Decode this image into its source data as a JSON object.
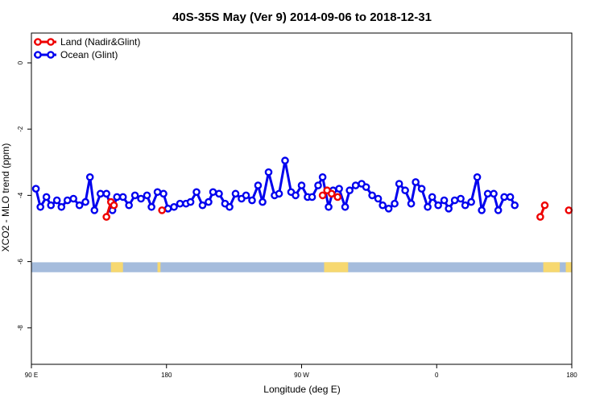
{
  "chart_data": {
    "type": "line",
    "title": "40S-35S May (Ver 9)   2014-09-06 to 2018-12-31",
    "xlabel": "Longitude (deg E)",
    "ylabel": "XCO2 - MLO trend (ppm)",
    "xlim": [
      90,
      450
    ],
    "ylim": [
      -9.1,
      0.9
    ],
    "x_ticks": [
      {
        "value": 90,
        "label": "90 E"
      },
      {
        "value": 180,
        "label": "180"
      },
      {
        "value": 270,
        "label": "90 W"
      },
      {
        "value": 360,
        "label": "0"
      },
      {
        "value": 450,
        "label": "180"
      }
    ],
    "y_ticks": [
      {
        "value": 0,
        "label": "0"
      },
      {
        "value": -2,
        "label": "-2"
      },
      {
        "value": -4,
        "label": "-4"
      },
      {
        "value": -6,
        "label": "-6"
      },
      {
        "value": -8,
        "label": "-8"
      }
    ],
    "grid": false,
    "legend": "top-left",
    "land_band": {
      "y_range": [
        -6.32,
        -6.02
      ],
      "ocean_color": "#a5bcdc",
      "land_color": "#f7d870",
      "land_spans": [
        [
          143,
          151
        ],
        [
          174,
          176
        ],
        [
          285,
          301
        ],
        [
          431,
          442
        ],
        [
          446,
          450
        ]
      ]
    },
    "series": [
      {
        "name": "Land (Nadir&Glint)",
        "color": "#ee0000",
        "segments": [
          [
            [
              140,
              -4.65
            ],
            [
              143,
              -4.2
            ],
            [
              145,
              -4.3
            ]
          ],
          [
            [
              177,
              -4.45
            ]
          ],
          [
            [
              284,
              -4.0
            ],
            [
              287,
              -3.85
            ],
            [
              290,
              -3.95
            ],
            [
              294,
              -4.05
            ]
          ],
          [
            [
              429,
              -4.65
            ],
            [
              432,
              -4.3
            ]
          ],
          [
            [
              448,
              -4.45
            ]
          ]
        ]
      },
      {
        "name": "Ocean (Glint)",
        "color": "#0000ee",
        "points": [
          [
            93,
            -3.8
          ],
          [
            96,
            -4.35
          ],
          [
            100,
            -4.05
          ],
          [
            103,
            -4.3
          ],
          [
            107,
            -4.15
          ],
          [
            110,
            -4.35
          ],
          [
            114,
            -4.15
          ],
          [
            118,
            -4.1
          ],
          [
            122,
            -4.3
          ],
          [
            126,
            -4.2
          ],
          [
            129,
            -3.45
          ],
          [
            132,
            -4.45
          ],
          [
            136,
            -3.95
          ],
          [
            140,
            -3.95
          ],
          [
            144,
            -4.45
          ],
          [
            147,
            -4.05
          ],
          [
            151,
            -4.05
          ],
          [
            155,
            -4.3
          ],
          [
            159,
            -4.0
          ],
          [
            163,
            -4.1
          ],
          [
            167,
            -4.0
          ],
          [
            170,
            -4.35
          ],
          [
            174,
            -3.9
          ],
          [
            178,
            -3.95
          ],
          [
            181,
            -4.4
          ],
          [
            185,
            -4.35
          ],
          [
            189,
            -4.25
          ],
          [
            193,
            -4.25
          ],
          [
            196,
            -4.2
          ],
          [
            200,
            -3.9
          ],
          [
            204,
            -4.3
          ],
          [
            208,
            -4.2
          ],
          [
            211,
            -3.9
          ],
          [
            215,
            -3.95
          ],
          [
            219,
            -4.25
          ],
          [
            222,
            -4.35
          ],
          [
            226,
            -3.95
          ],
          [
            230,
            -4.1
          ],
          [
            233,
            -4.0
          ],
          [
            237,
            -4.15
          ],
          [
            241,
            -3.7
          ],
          [
            244,
            -4.2
          ],
          [
            248,
            -3.3
          ],
          [
            252,
            -4.0
          ],
          [
            255,
            -3.95
          ],
          [
            259,
            -2.95
          ],
          [
            263,
            -3.9
          ],
          [
            266,
            -4.0
          ],
          [
            270,
            -3.7
          ],
          [
            274,
            -4.05
          ],
          [
            277,
            -4.05
          ],
          [
            281,
            -3.7
          ],
          [
            284,
            -3.45
          ],
          [
            288,
            -4.35
          ],
          [
            291,
            -3.85
          ],
          [
            295,
            -3.8
          ],
          [
            299,
            -4.35
          ],
          [
            302,
            -3.85
          ],
          [
            306,
            -3.7
          ],
          [
            310,
            -3.65
          ],
          [
            313,
            -3.75
          ],
          [
            317,
            -4.0
          ],
          [
            321,
            -4.1
          ],
          [
            324,
            -4.3
          ],
          [
            328,
            -4.4
          ],
          [
            332,
            -4.25
          ],
          [
            335,
            -3.65
          ],
          [
            339,
            -3.85
          ],
          [
            343,
            -4.25
          ],
          [
            346,
            -3.6
          ],
          [
            350,
            -3.8
          ],
          [
            354,
            -4.35
          ],
          [
            357,
            -4.05
          ],
          [
            361,
            -4.3
          ],
          [
            365,
            -4.15
          ],
          [
            368,
            -4.4
          ],
          [
            372,
            -4.15
          ],
          [
            376,
            -4.1
          ],
          [
            379,
            -4.3
          ],
          [
            383,
            -4.2
          ],
          [
            387,
            -3.45
          ],
          [
            390,
            -4.45
          ],
          [
            394,
            -3.95
          ],
          [
            398,
            -3.95
          ],
          [
            401,
            -4.45
          ],
          [
            405,
            -4.05
          ],
          [
            409,
            -4.05
          ],
          [
            412,
            -4.3
          ]
        ]
      }
    ]
  }
}
